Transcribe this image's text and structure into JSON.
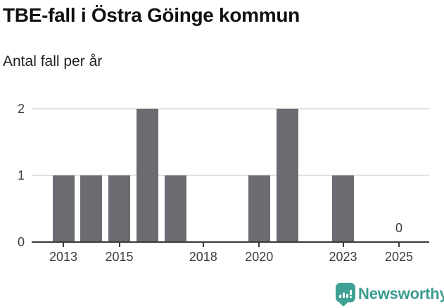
{
  "header": {
    "title": "TBE-fall i Östra Göinge kommun",
    "subtitle": "Antal fall per år"
  },
  "chart_data": {
    "type": "bar",
    "title": "TBE-fall i Östra Göinge kommun",
    "subtitle": "Antal fall per år",
    "xlabel": "",
    "ylabel": "Antal fall per år",
    "categories": [
      "2012",
      "2013",
      "2014",
      "2015",
      "2016",
      "2017",
      "2018",
      "2019",
      "2020",
      "2021",
      "2022",
      "2023",
      "2024",
      "2025"
    ],
    "values": [
      0,
      1,
      1,
      1,
      2,
      1,
      0,
      0,
      1,
      2,
      0,
      1,
      0,
      0
    ],
    "ylim": [
      0,
      2
    ],
    "yticks": [
      0,
      1,
      2
    ],
    "xtick_labels": [
      "2013",
      "2015",
      "2018",
      "2020",
      "2023",
      "2025"
    ],
    "grid": "horizontal",
    "legend": "none",
    "bar_color": "#6d6a72",
    "gridline_color": "#e2e2e2",
    "axis_color": "#3a3a3a",
    "annotations": [
      {
        "category": "2025",
        "label": "0"
      }
    ]
  },
  "footer": {
    "brand": "Newsworthy",
    "brand_color": "#3a9c8e",
    "icon": "newsworthy-speech-bubble-bar-chart-icon",
    "icon_color": "#3fa193"
  }
}
